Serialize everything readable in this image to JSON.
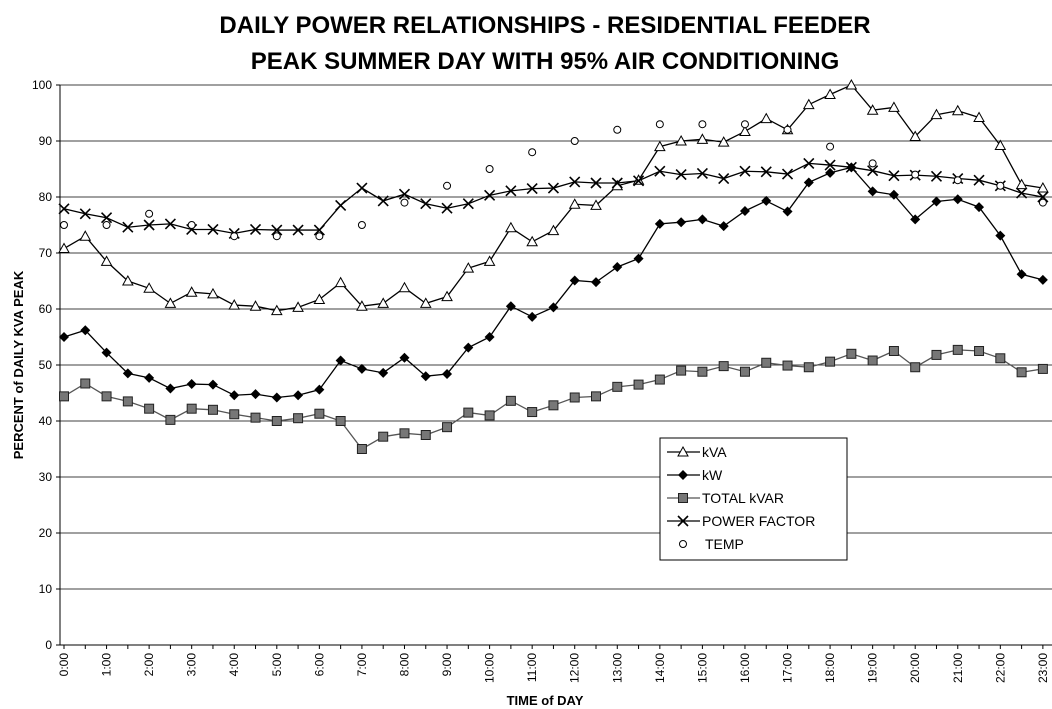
{
  "chart_data": {
    "type": "line",
    "title": [
      "DAILY POWER RELATIONSHIPS - RESIDENTIAL FEEDER",
      "PEAK SUMMER DAY WITH 95% AIR CONDITIONING"
    ],
    "x_label": "TIME of DAY",
    "y_label": "PERCENT of DAILY KVA PEAK",
    "categories": [
      "0:00",
      null,
      "1:00",
      null,
      "2:00",
      null,
      "3:00",
      null,
      "4:00",
      null,
      "5:00",
      null,
      "6:00",
      null,
      "7:00",
      null,
      "8:00",
      null,
      "9:00",
      null,
      "10:00",
      null,
      "11:00",
      null,
      "12:00",
      null,
      "13:00",
      null,
      "14:00",
      null,
      "15:00",
      null,
      "16:00",
      null,
      "17:00",
      null,
      "18:00",
      null,
      "19:00",
      null,
      "20:00",
      null,
      "21:00",
      null,
      "22:00",
      null,
      "23:00"
    ],
    "ylim": [
      0,
      100
    ],
    "yticks": [
      0,
      10,
      20,
      30,
      40,
      50,
      60,
      70,
      80,
      90,
      100
    ],
    "grid": true,
    "series": [
      {
        "name": "kVA",
        "marker": "triangle",
        "line": true,
        "color": "#000000",
        "values": [
          70.8,
          73,
          68.5,
          65,
          63.7,
          61,
          63,
          62.7,
          60.7,
          60.5,
          59.7,
          60.3,
          61.7,
          64.7,
          60.5,
          61,
          63.8,
          61,
          62.2,
          67.3,
          68.5,
          74.5,
          72,
          74,
          78.7,
          78.5,
          82,
          83,
          89,
          90,
          90.3,
          89.8,
          91.7,
          94,
          92,
          96.5,
          98.3,
          100,
          95.5,
          96,
          90.8,
          94.7,
          95.4,
          94.2,
          89.2,
          82.2,
          81.6
        ]
      },
      {
        "name": "kW",
        "marker": "diamond",
        "line": true,
        "color": "#000000",
        "values": [
          55,
          56.2,
          52.2,
          48.5,
          47.7,
          45.8,
          46.6,
          46.5,
          44.6,
          44.8,
          44.2,
          44.6,
          45.6,
          50.8,
          49.3,
          48.6,
          51.3,
          48,
          48.4,
          53.1,
          55,
          60.5,
          58.6,
          60.3,
          65.1,
          64.8,
          67.5,
          69,
          75.2,
          75.5,
          76,
          74.8,
          77.5,
          79.3,
          77.4,
          82.6,
          84.3,
          85.3,
          81,
          80.4,
          76,
          79.2,
          79.6,
          78.2,
          73.1,
          66.2,
          65.2
        ]
      },
      {
        "name": "TOTAL kVAR",
        "marker": "square",
        "line": true,
        "color": "#555555",
        "values": [
          44.4,
          46.7,
          44.4,
          43.5,
          42.2,
          40.2,
          42.2,
          42,
          41.2,
          40.6,
          40,
          40.5,
          41.3,
          40,
          35,
          37.2,
          37.8,
          37.5,
          38.9,
          41.5,
          41,
          43.6,
          41.6,
          42.8,
          44.2,
          44.4,
          46.1,
          46.5,
          47.4,
          49,
          48.8,
          49.8,
          48.8,
          50.4,
          49.9,
          49.6,
          50.6,
          52,
          50.8,
          52.5,
          49.6,
          51.8,
          52.7,
          52.5,
          51.2,
          48.7,
          49.3
        ]
      },
      {
        "name": "POWER FACTOR",
        "marker": "x",
        "line": true,
        "color": "#000000",
        "values": [
          77.9,
          77,
          76.3,
          74.6,
          75,
          75.2,
          74.2,
          74.2,
          73.5,
          74.2,
          74.1,
          74.1,
          74.1,
          78.5,
          81.6,
          79.3,
          80.5,
          78.8,
          78,
          78.8,
          80.3,
          81.1,
          81.5,
          81.6,
          82.7,
          82.5,
          82.5,
          82.9,
          84.6,
          84,
          84.2,
          83.3,
          84.6,
          84.5,
          84.1,
          86,
          85.7,
          85.3,
          84.7,
          83.8,
          83.9,
          83.7,
          83.3,
          83,
          82,
          80.7,
          80
        ]
      },
      {
        "name": "TEMP",
        "marker": "circle",
        "line": false,
        "color": "#000000",
        "values": [
          75,
          null,
          75,
          null,
          77,
          null,
          75,
          null,
          73,
          null,
          73,
          null,
          73,
          null,
          75,
          null,
          79,
          null,
          82,
          null,
          85,
          null,
          88,
          null,
          90,
          null,
          92,
          null,
          93,
          null,
          93,
          null,
          93,
          null,
          92,
          null,
          89,
          null,
          86,
          null,
          84,
          null,
          83,
          null,
          82,
          null,
          79
        ]
      }
    ]
  }
}
